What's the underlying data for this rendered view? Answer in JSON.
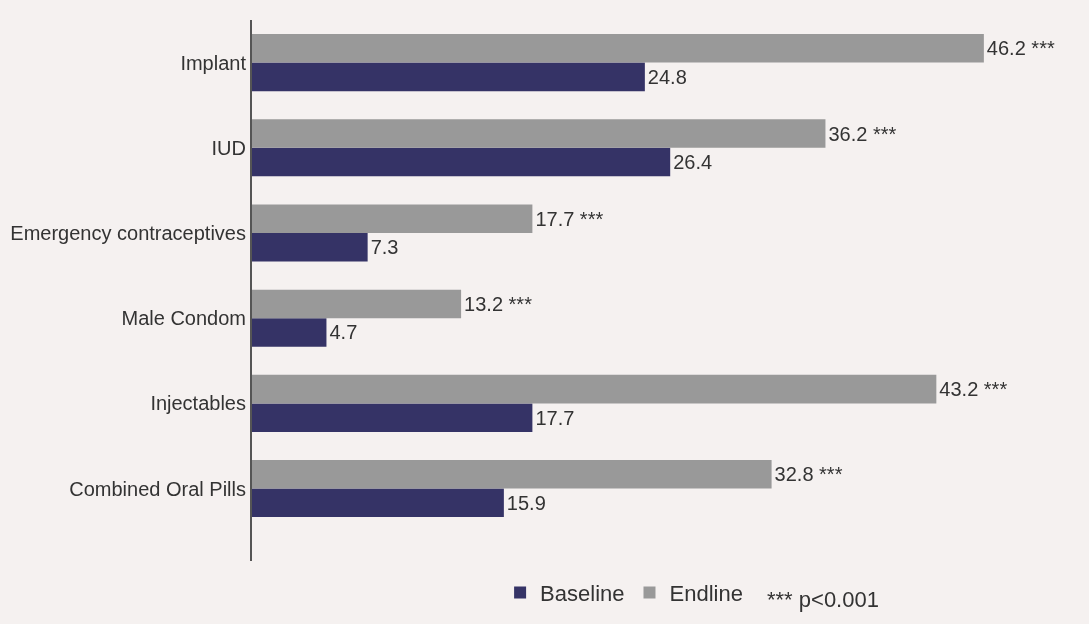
{
  "chart_data": {
    "type": "bar",
    "orientation": "horizontal",
    "categories": [
      "Implant",
      "IUD",
      "Emergency contraceptives",
      "Male Condom",
      "Injectables",
      "Combined Oral Pills"
    ],
    "series": [
      {
        "name": "Baseline",
        "color": "#353366",
        "values": [
          24.8,
          26.4,
          7.3,
          4.7,
          17.7,
          15.9
        ],
        "value_labels": [
          "24.8",
          "26.4",
          "7.3",
          "4.7",
          "17.7",
          "15.9"
        ]
      },
      {
        "name": "Endline",
        "color": "#999999",
        "values": [
          46.2,
          36.2,
          17.7,
          13.2,
          43.2,
          32.8
        ],
        "value_labels": [
          "46.2 ***",
          "36.2 ***",
          "17.7 ***",
          "13.2 ***",
          "43.2 ***",
          "32.8 ***"
        ]
      }
    ],
    "legend": "bottom",
    "grid": false,
    "annotations": [
      "*** p<0.001"
    ]
  }
}
